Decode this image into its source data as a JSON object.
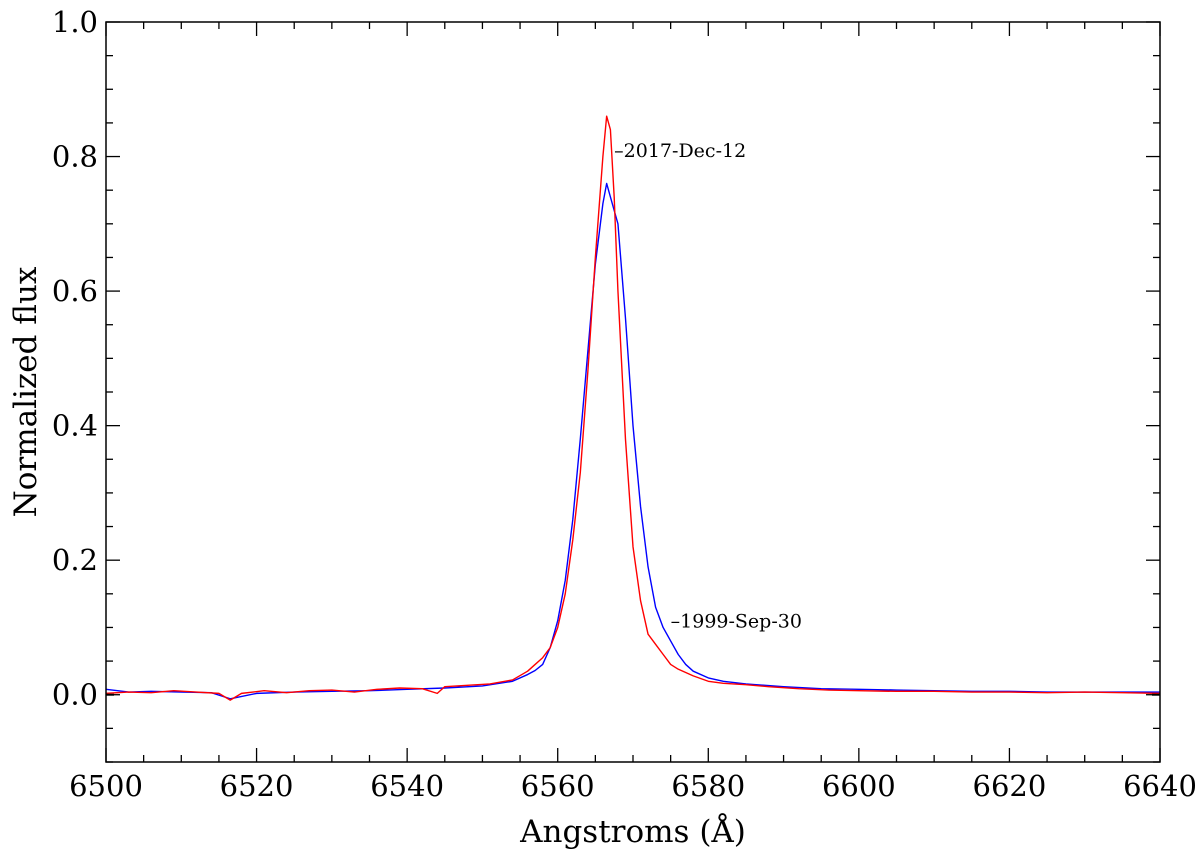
{
  "chart_data": {
    "type": "line",
    "title": "",
    "xlabel": "Angstroms (Å)",
    "ylabel": "Normalized flux",
    "xlim": [
      6500,
      6640
    ],
    "ylim": [
      -0.1,
      1.0
    ],
    "x_ticks": [
      6500,
      6520,
      6540,
      6560,
      6580,
      6600,
      6620,
      6640
    ],
    "x_tick_labels": [
      "6500",
      "6520",
      "6540",
      "6560",
      "6580",
      "6600",
      "6620",
      "6640"
    ],
    "y_ticks": [
      0.0,
      0.2,
      0.4,
      0.6,
      0.8,
      1.0
    ],
    "y_tick_labels": [
      "0.0",
      "0.2",
      "0.4",
      "0.6",
      "0.8",
      "1.0"
    ],
    "grid": false,
    "annotations": [
      {
        "text": "–2017-Dec-12",
        "x": 6567.5,
        "y": 0.81
      },
      {
        "text": "–1999-Sep-30",
        "x": 6575.0,
        "y": 0.11
      }
    ],
    "series": [
      {
        "color": "#ff0000",
        "x": [
          6500,
          6503,
          6506,
          6509,
          6512,
          6515,
          6516.5,
          6518,
          6521,
          6524,
          6527,
          6530,
          6533,
          6536,
          6539,
          6542,
          6544,
          6545,
          6548,
          6551,
          6554,
          6556,
          6557,
          6558,
          6559,
          6560,
          6561,
          6562,
          6563,
          6564,
          6565,
          6566,
          6566.5,
          6567,
          6567.5,
          6568,
          6569,
          6570,
          6571,
          6572,
          6573,
          6574,
          6575,
          6576,
          6577,
          6578,
          6580,
          6582,
          6585,
          6588,
          6592,
          6596,
          6600,
          6605,
          6610,
          6615,
          6620,
          6625,
          6630,
          6635,
          6640
        ],
        "y": [
          0.002,
          0.004,
          0.003,
          0.006,
          0.004,
          0.002,
          -0.008,
          0.002,
          0.006,
          0.003,
          0.006,
          0.007,
          0.004,
          0.008,
          0.01,
          0.009,
          0.002,
          0.012,
          0.014,
          0.016,
          0.022,
          0.035,
          0.045,
          0.055,
          0.07,
          0.1,
          0.15,
          0.23,
          0.33,
          0.48,
          0.65,
          0.8,
          0.86,
          0.84,
          0.74,
          0.6,
          0.38,
          0.22,
          0.14,
          0.09,
          0.075,
          0.06,
          0.045,
          0.038,
          0.033,
          0.028,
          0.02,
          0.017,
          0.015,
          0.012,
          0.009,
          0.007,
          0.006,
          0.005,
          0.005,
          0.004,
          0.004,
          0.003,
          0.004,
          0.003,
          0.002
        ]
      },
      {
        "color": "#0000ff",
        "x": [
          6500,
          6503,
          6506,
          6510,
          6514,
          6516.5,
          6520,
          6525,
          6530,
          6535,
          6540,
          6545,
          6550,
          6554,
          6556,
          6557,
          6558,
          6559,
          6560,
          6561,
          6562,
          6563,
          6564,
          6565,
          6566,
          6566.5,
          6567,
          6568,
          6569,
          6570,
          6571,
          6572,
          6573,
          6574,
          6575,
          6576,
          6577,
          6578,
          6580,
          6582,
          6585,
          6590,
          6595,
          6600,
          6605,
          6610,
          6615,
          6620,
          6625,
          6630,
          6635,
          6640
        ],
        "y": [
          0.008,
          0.004,
          0.005,
          0.004,
          0.003,
          -0.006,
          0.002,
          0.004,
          0.005,
          0.006,
          0.008,
          0.01,
          0.013,
          0.02,
          0.03,
          0.036,
          0.045,
          0.07,
          0.11,
          0.17,
          0.26,
          0.38,
          0.51,
          0.64,
          0.73,
          0.76,
          0.74,
          0.7,
          0.56,
          0.4,
          0.28,
          0.19,
          0.13,
          0.1,
          0.08,
          0.06,
          0.045,
          0.035,
          0.025,
          0.02,
          0.016,
          0.012,
          0.009,
          0.008,
          0.007,
          0.006,
          0.005,
          0.005,
          0.004,
          0.004,
          0.004,
          0.004
        ]
      }
    ]
  }
}
